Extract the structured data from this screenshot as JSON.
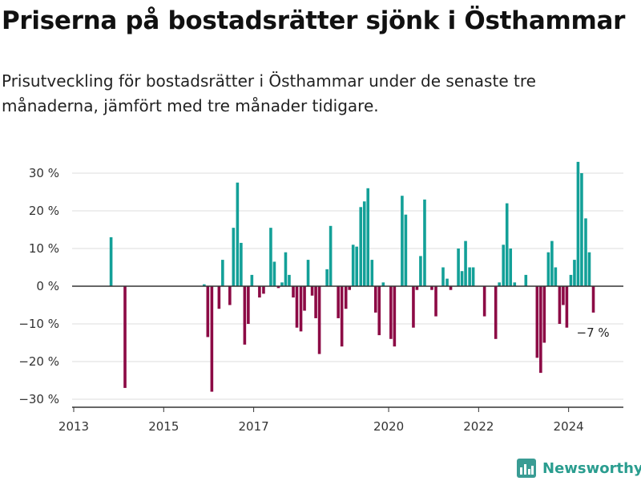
{
  "title": "Priserna på bostadsrätter sjönk i Östhammar",
  "subtitle": "Prisutveckling för bostadsrätter i Östhammar under de senaste tre månaderna, jämfört med tre månader tidigare.",
  "brand": {
    "name": "Newsworthy",
    "icon": "bar-chart-logo-icon"
  },
  "colors": {
    "positive": "#13a098",
    "negative": "#8c0a45",
    "grid": "#dddddd",
    "axis": "#333333"
  },
  "chart_data": {
    "type": "bar",
    "x_unit": "decimal year (monthly observations)",
    "y_unit": "percent",
    "xlim": [
      2013.0,
      2025.25
    ],
    "ylim": [
      -32,
      34
    ],
    "yticks": [
      30,
      20,
      10,
      0,
      -10,
      -20,
      -30
    ],
    "ytick_labels": [
      "30 %",
      "20 %",
      "10 %",
      "0 %",
      "−10 %",
      "−20 %",
      "−30 %"
    ],
    "xticks": [
      2013,
      2015,
      2017,
      2020,
      2022,
      2024
    ],
    "xtick_labels": [
      "2013",
      "2015",
      "2017",
      "2020",
      "2022",
      "2024"
    ],
    "grid": true,
    "points": [
      {
        "x": 2013.83,
        "y": 13
      },
      {
        "x": 2014.14,
        "y": -27
      },
      {
        "x": 2015.9,
        "y": 0.5
      },
      {
        "x": 2015.98,
        "y": -13.5
      },
      {
        "x": 2016.07,
        "y": -28
      },
      {
        "x": 2016.23,
        "y": -6
      },
      {
        "x": 2016.31,
        "y": 7
      },
      {
        "x": 2016.47,
        "y": -5
      },
      {
        "x": 2016.55,
        "y": 15.5
      },
      {
        "x": 2016.64,
        "y": 27.5
      },
      {
        "x": 2016.72,
        "y": 11.5
      },
      {
        "x": 2016.8,
        "y": -15.5
      },
      {
        "x": 2016.88,
        "y": -10
      },
      {
        "x": 2016.96,
        "y": 3
      },
      {
        "x": 2017.13,
        "y": -3
      },
      {
        "x": 2017.22,
        "y": -2
      },
      {
        "x": 2017.38,
        "y": 15.5
      },
      {
        "x": 2017.46,
        "y": 6.5
      },
      {
        "x": 2017.55,
        "y": -0.5
      },
      {
        "x": 2017.63,
        "y": 1
      },
      {
        "x": 2017.71,
        "y": 9
      },
      {
        "x": 2017.79,
        "y": 3
      },
      {
        "x": 2017.88,
        "y": -3
      },
      {
        "x": 2017.96,
        "y": -11
      },
      {
        "x": 2018.05,
        "y": -12
      },
      {
        "x": 2018.13,
        "y": -6.5
      },
      {
        "x": 2018.21,
        "y": 7
      },
      {
        "x": 2018.3,
        "y": -2.5
      },
      {
        "x": 2018.38,
        "y": -8.5
      },
      {
        "x": 2018.46,
        "y": -18
      },
      {
        "x": 2018.63,
        "y": 4.5
      },
      {
        "x": 2018.71,
        "y": 16
      },
      {
        "x": 2018.88,
        "y": -8.5
      },
      {
        "x": 2018.96,
        "y": -16
      },
      {
        "x": 2019.05,
        "y": -6
      },
      {
        "x": 2019.13,
        "y": -1
      },
      {
        "x": 2019.21,
        "y": 11
      },
      {
        "x": 2019.29,
        "y": 10.5
      },
      {
        "x": 2019.38,
        "y": 21
      },
      {
        "x": 2019.46,
        "y": 22.5
      },
      {
        "x": 2019.54,
        "y": 26
      },
      {
        "x": 2019.63,
        "y": 7
      },
      {
        "x": 2019.71,
        "y": -7
      },
      {
        "x": 2019.79,
        "y": -13
      },
      {
        "x": 2019.88,
        "y": 1
      },
      {
        "x": 2020.05,
        "y": -14
      },
      {
        "x": 2020.13,
        "y": -16
      },
      {
        "x": 2020.3,
        "y": 24
      },
      {
        "x": 2020.38,
        "y": 19
      },
      {
        "x": 2020.55,
        "y": -11
      },
      {
        "x": 2020.63,
        "y": -1
      },
      {
        "x": 2020.71,
        "y": 8
      },
      {
        "x": 2020.8,
        "y": 23
      },
      {
        "x": 2020.96,
        "y": -1
      },
      {
        "x": 2021.05,
        "y": -8
      },
      {
        "x": 2021.21,
        "y": 5
      },
      {
        "x": 2021.3,
        "y": 2
      },
      {
        "x": 2021.38,
        "y": -1
      },
      {
        "x": 2021.55,
        "y": 10
      },
      {
        "x": 2021.63,
        "y": 4
      },
      {
        "x": 2021.71,
        "y": 12
      },
      {
        "x": 2021.8,
        "y": 5
      },
      {
        "x": 2021.88,
        "y": 5
      },
      {
        "x": 2022.13,
        "y": -8
      },
      {
        "x": 2022.38,
        "y": -14
      },
      {
        "x": 2022.46,
        "y": 1
      },
      {
        "x": 2022.55,
        "y": 11
      },
      {
        "x": 2022.63,
        "y": 22
      },
      {
        "x": 2022.71,
        "y": 10
      },
      {
        "x": 2022.8,
        "y": 1
      },
      {
        "x": 2023.05,
        "y": 3
      },
      {
        "x": 2023.3,
        "y": -19
      },
      {
        "x": 2023.38,
        "y": -23
      },
      {
        "x": 2023.46,
        "y": -15
      },
      {
        "x": 2023.55,
        "y": 9
      },
      {
        "x": 2023.63,
        "y": 12
      },
      {
        "x": 2023.71,
        "y": 5
      },
      {
        "x": 2023.8,
        "y": -10
      },
      {
        "x": 2023.88,
        "y": -5
      },
      {
        "x": 2023.96,
        "y": -11
      },
      {
        "x": 2024.05,
        "y": 3
      },
      {
        "x": 2024.13,
        "y": 7
      },
      {
        "x": 2024.21,
        "y": 33
      },
      {
        "x": 2024.29,
        "y": 30
      },
      {
        "x": 2024.38,
        "y": 18
      },
      {
        "x": 2024.46,
        "y": 9
      },
      {
        "x": 2024.55,
        "y": -7
      }
    ],
    "annotations": [
      {
        "text": "−7 %",
        "x": 2024.55,
        "y": -7
      }
    ]
  }
}
